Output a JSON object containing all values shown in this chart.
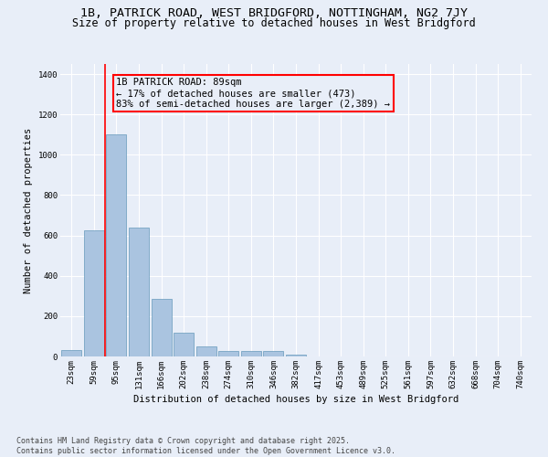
{
  "title1": "1B, PATRICK ROAD, WEST BRIDGFORD, NOTTINGHAM, NG2 7JY",
  "title2": "Size of property relative to detached houses in West Bridgford",
  "xlabel": "Distribution of detached houses by size in West Bridgford",
  "ylabel": "Number of detached properties",
  "categories": [
    "23sqm",
    "59sqm",
    "95sqm",
    "131sqm",
    "166sqm",
    "202sqm",
    "238sqm",
    "274sqm",
    "310sqm",
    "346sqm",
    "382sqm",
    "417sqm",
    "453sqm",
    "489sqm",
    "525sqm",
    "561sqm",
    "597sqm",
    "632sqm",
    "668sqm",
    "704sqm",
    "740sqm"
  ],
  "values": [
    30,
    625,
    1100,
    640,
    285,
    120,
    50,
    25,
    25,
    25,
    10,
    0,
    0,
    0,
    0,
    0,
    0,
    0,
    0,
    0,
    0
  ],
  "bar_color": "#aac4e0",
  "bar_edge_color": "#6699bb",
  "vline_x": 1.5,
  "vline_color": "red",
  "annotation_text": "1B PATRICK ROAD: 89sqm\n← 17% of detached houses are smaller (473)\n83% of semi-detached houses are larger (2,389) →",
  "box_color": "red",
  "background_color": "#e8eef8",
  "grid_color": "#ffffff",
  "ylim": [
    0,
    1450
  ],
  "yticks": [
    0,
    200,
    400,
    600,
    800,
    1000,
    1200,
    1400
  ],
  "footer": "Contains HM Land Registry data © Crown copyright and database right 2025.\nContains public sector information licensed under the Open Government Licence v3.0.",
  "title_fontsize": 9.5,
  "subtitle_fontsize": 8.5,
  "label_fontsize": 7.5,
  "tick_fontsize": 6.5,
  "footer_fontsize": 6.0,
  "annotation_fontsize": 7.5
}
